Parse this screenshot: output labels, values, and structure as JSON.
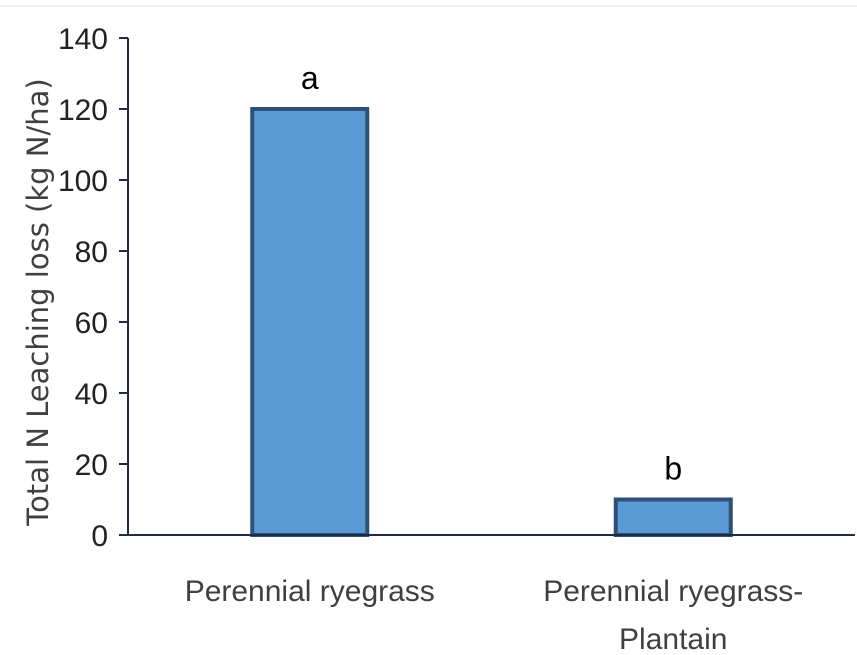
{
  "chart_data": {
    "type": "bar",
    "categories": [
      "Perennial ryegrass",
      "Perennial ryegrass-Plantain"
    ],
    "category_lines": [
      [
        "Perennial ryegrass"
      ],
      [
        "Perennial ryegrass-",
        "Plantain"
      ]
    ],
    "values": [
      120,
      10
    ],
    "data_labels": [
      "a",
      "b"
    ],
    "title": "",
    "xlabel": "",
    "ylabel": "Total N  Leaching loss (kg N/ha)",
    "ylim": [
      0,
      140
    ],
    "yticks": [
      0,
      20,
      40,
      60,
      80,
      100,
      120,
      140
    ],
    "grid": false,
    "colors": {
      "bar_fill": "#5b9bd5",
      "bar_stroke": "#2e4f78",
      "axis": "#1f2a44"
    }
  }
}
